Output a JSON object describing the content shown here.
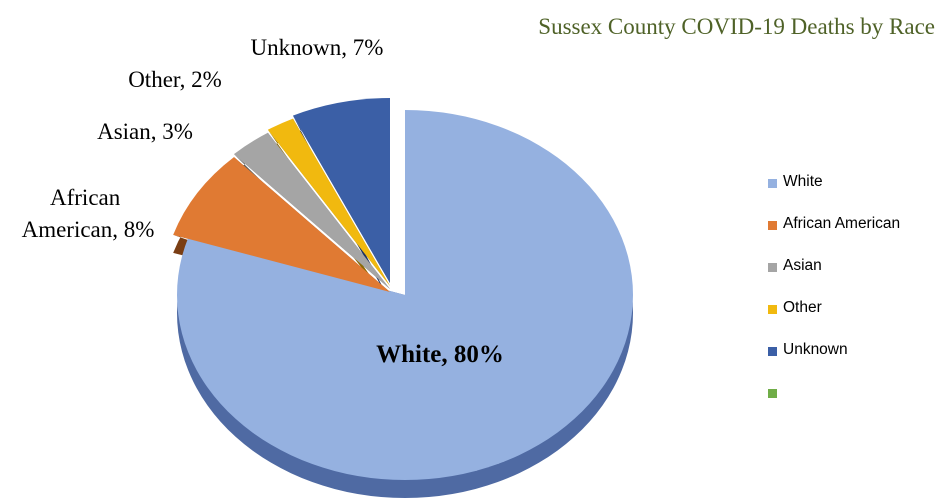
{
  "chart_data": {
    "type": "pie",
    "title": "Sussex County COVID-19 Deaths by Race",
    "slices": [
      {
        "name": "White",
        "value": 80,
        "label": "White, 80%",
        "color": "#95b1e0",
        "side": "#4f6aa3",
        "exploded": false,
        "bold": true
      },
      {
        "name": "African American",
        "value": 8,
        "label": "African American, 8%",
        "color": "#e07a33",
        "side": "#7a3e14",
        "exploded": true,
        "bold": false
      },
      {
        "name": "Asian",
        "value": 3,
        "label": "Asian, 3%",
        "color": "#a5a5a5",
        "side": "#5e5e5e",
        "exploded": true,
        "bold": false
      },
      {
        "name": "Other",
        "value": 2,
        "label": "Other, 2%",
        "color": "#f1b90f",
        "side": "#8a6a06",
        "exploded": true,
        "bold": false
      },
      {
        "name": "Unknown",
        "value": 7,
        "label": "Unknown, 7%",
        "color": "#3b5fa6",
        "side": "#1e3363",
        "exploded": true,
        "bold": false
      }
    ],
    "legend": {
      "position": "right",
      "entries": [
        {
          "label": "White",
          "color": "#95b1e0"
        },
        {
          "label": "African American",
          "color": "#e07a33"
        },
        {
          "label": "Asian",
          "color": "#a5a5a5"
        },
        {
          "label": "Other",
          "color": "#f1b90f"
        },
        {
          "label": "Unknown",
          "color": "#3b5fa6"
        },
        {
          "label": "",
          "color": "#70ad47"
        }
      ]
    }
  }
}
